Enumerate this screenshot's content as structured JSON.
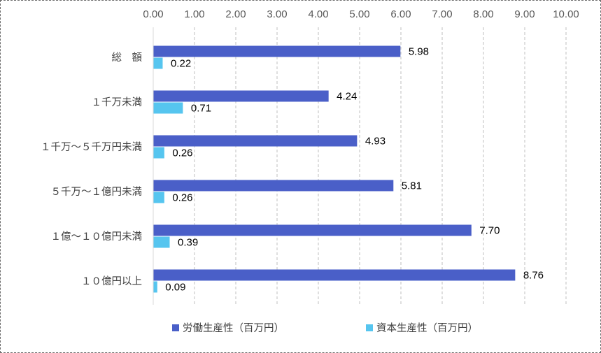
{
  "chart_data": {
    "type": "bar",
    "orientation": "horizontal",
    "categories": [
      "総　額",
      "１千万未満",
      "１千万～５千万円未満",
      "５千万～１億円未満",
      "１億～１０億円未満",
      "１０億円以上"
    ],
    "series": [
      {
        "name": "労働生産性（百万円）",
        "color": "#4A5FC8",
        "values": [
          5.98,
          4.24,
          4.93,
          5.81,
          7.7,
          8.76
        ]
      },
      {
        "name": "資本生産性（百万円）",
        "color": "#56C5EF",
        "values": [
          0.22,
          0.71,
          0.26,
          0.26,
          0.39,
          0.09
        ]
      }
    ],
    "x_ticks": [
      "0.00",
      "1.00",
      "2.00",
      "3.00",
      "4.00",
      "5.00",
      "6.00",
      "7.00",
      "8.00",
      "9.00",
      "10.00"
    ],
    "xlim": [
      0,
      10
    ],
    "value_format_decimals": 2,
    "grid": "vertical-dashed",
    "axis_position": "top",
    "legend_position": "bottom"
  },
  "colors": {
    "grid": "#bfbfbf",
    "frame": "#6b6b6b"
  }
}
